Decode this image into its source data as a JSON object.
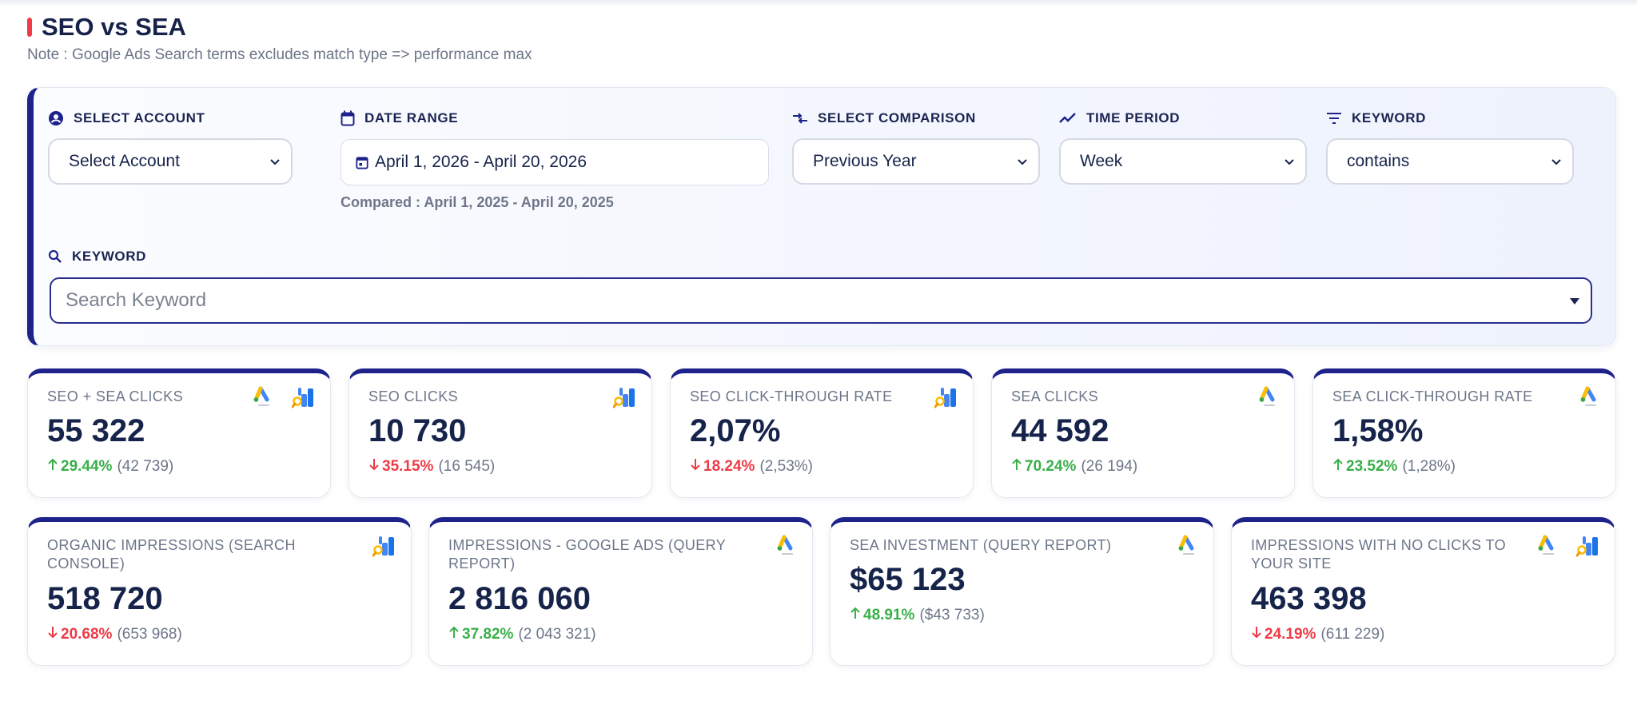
{
  "page": {
    "title": "SEO vs SEA",
    "note": "Note : Google Ads Search terms excludes match type => performance max"
  },
  "filters": {
    "account": {
      "label": "SELECT ACCOUNT",
      "value": "Select Account"
    },
    "date_range": {
      "label": "DATE RANGE",
      "value": "April 1, 2026 - April 20, 2026",
      "compared": "Compared : April 1, 2025 - April 20, 2025"
    },
    "comparison": {
      "label": "SELECT COMPARISON",
      "value": "Previous Year"
    },
    "time_period": {
      "label": "TIME PERIOD",
      "value": "Week"
    },
    "keyword_match": {
      "label": "KEYWORD",
      "value": "contains"
    },
    "keyword_search": {
      "label": "KEYWORD",
      "placeholder": "Search Keyword"
    }
  },
  "kpis": [
    {
      "label": "SEO + SEA CLICKS",
      "value": "55 322",
      "change": "29.44%",
      "direction": "up",
      "previous": "(42 739)",
      "icons": [
        "google-ads-icon",
        "search-console-icon"
      ]
    },
    {
      "label": "SEO CLICKS",
      "value": "10 730",
      "change": "35.15%",
      "direction": "down",
      "previous": "(16 545)",
      "icons": [
        "search-console-icon"
      ]
    },
    {
      "label": "SEO CLICK-THROUGH RATE",
      "value": "2,07%",
      "change": "18.24%",
      "direction": "down",
      "previous": "(2,53%)",
      "icons": [
        "search-console-icon"
      ]
    },
    {
      "label": "SEA CLICKS",
      "value": "44 592",
      "change": "70.24%",
      "direction": "up",
      "previous": "(26 194)",
      "icons": [
        "google-ads-icon"
      ]
    },
    {
      "label": "SEA CLICK-THROUGH RATE",
      "value": "1,58%",
      "change": "23.52%",
      "direction": "up",
      "previous": "(1,28%)",
      "icons": [
        "google-ads-icon"
      ]
    },
    {
      "label": "ORGANIC IMPRESSIONS (SEARCH CONSOLE)",
      "value": "518 720",
      "change": "20.68%",
      "direction": "down",
      "previous": "(653 968)",
      "icons": [
        "search-console-icon"
      ]
    },
    {
      "label": "IMPRESSIONS - GOOGLE ADS (QUERY REPORT)",
      "value": "2 816 060",
      "change": "37.82%",
      "direction": "up",
      "previous": "(2 043 321)",
      "icons": [
        "google-ads-icon"
      ]
    },
    {
      "label": "SEA INVESTMENT (QUERY REPORT)",
      "value": "$65 123",
      "change": "48.91%",
      "direction": "up",
      "previous": "($43 733)",
      "icons": [
        "google-ads-icon"
      ]
    },
    {
      "label": "IMPRESSIONS WITH NO CLICKS TO YOUR SITE",
      "value": "463 398",
      "change": "24.19%",
      "direction": "down",
      "previous": "(611 229)",
      "icons": [
        "google-ads-icon",
        "search-console-icon"
      ]
    }
  ],
  "colors": {
    "accent": "#1e238c",
    "up": "#38b049",
    "down": "#ef3b46",
    "title_bar": "#ef3b46"
  }
}
